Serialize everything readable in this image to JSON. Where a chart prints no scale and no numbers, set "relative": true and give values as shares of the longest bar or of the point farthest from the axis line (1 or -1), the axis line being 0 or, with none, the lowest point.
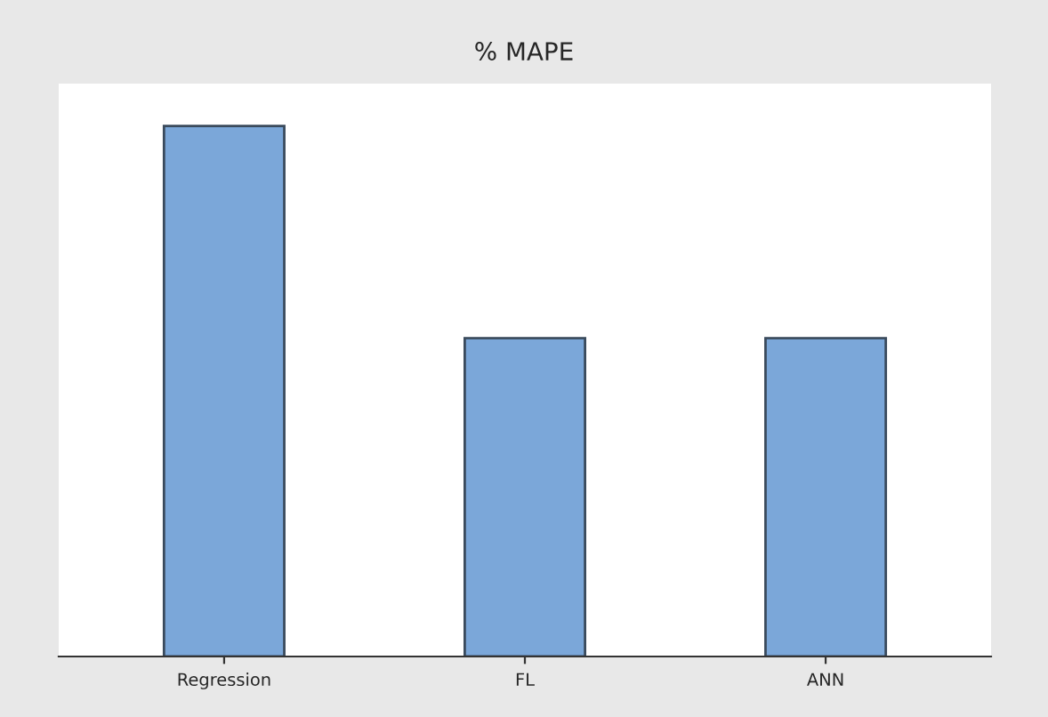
{
  "chart_data": {
    "type": "bar",
    "title": "% MAPE",
    "categories": [
      "Regression",
      "FL",
      "ANN"
    ],
    "values": [
      1,
      0.6,
      0.6
    ],
    "color": "#7ba7d9",
    "relative": true
  }
}
